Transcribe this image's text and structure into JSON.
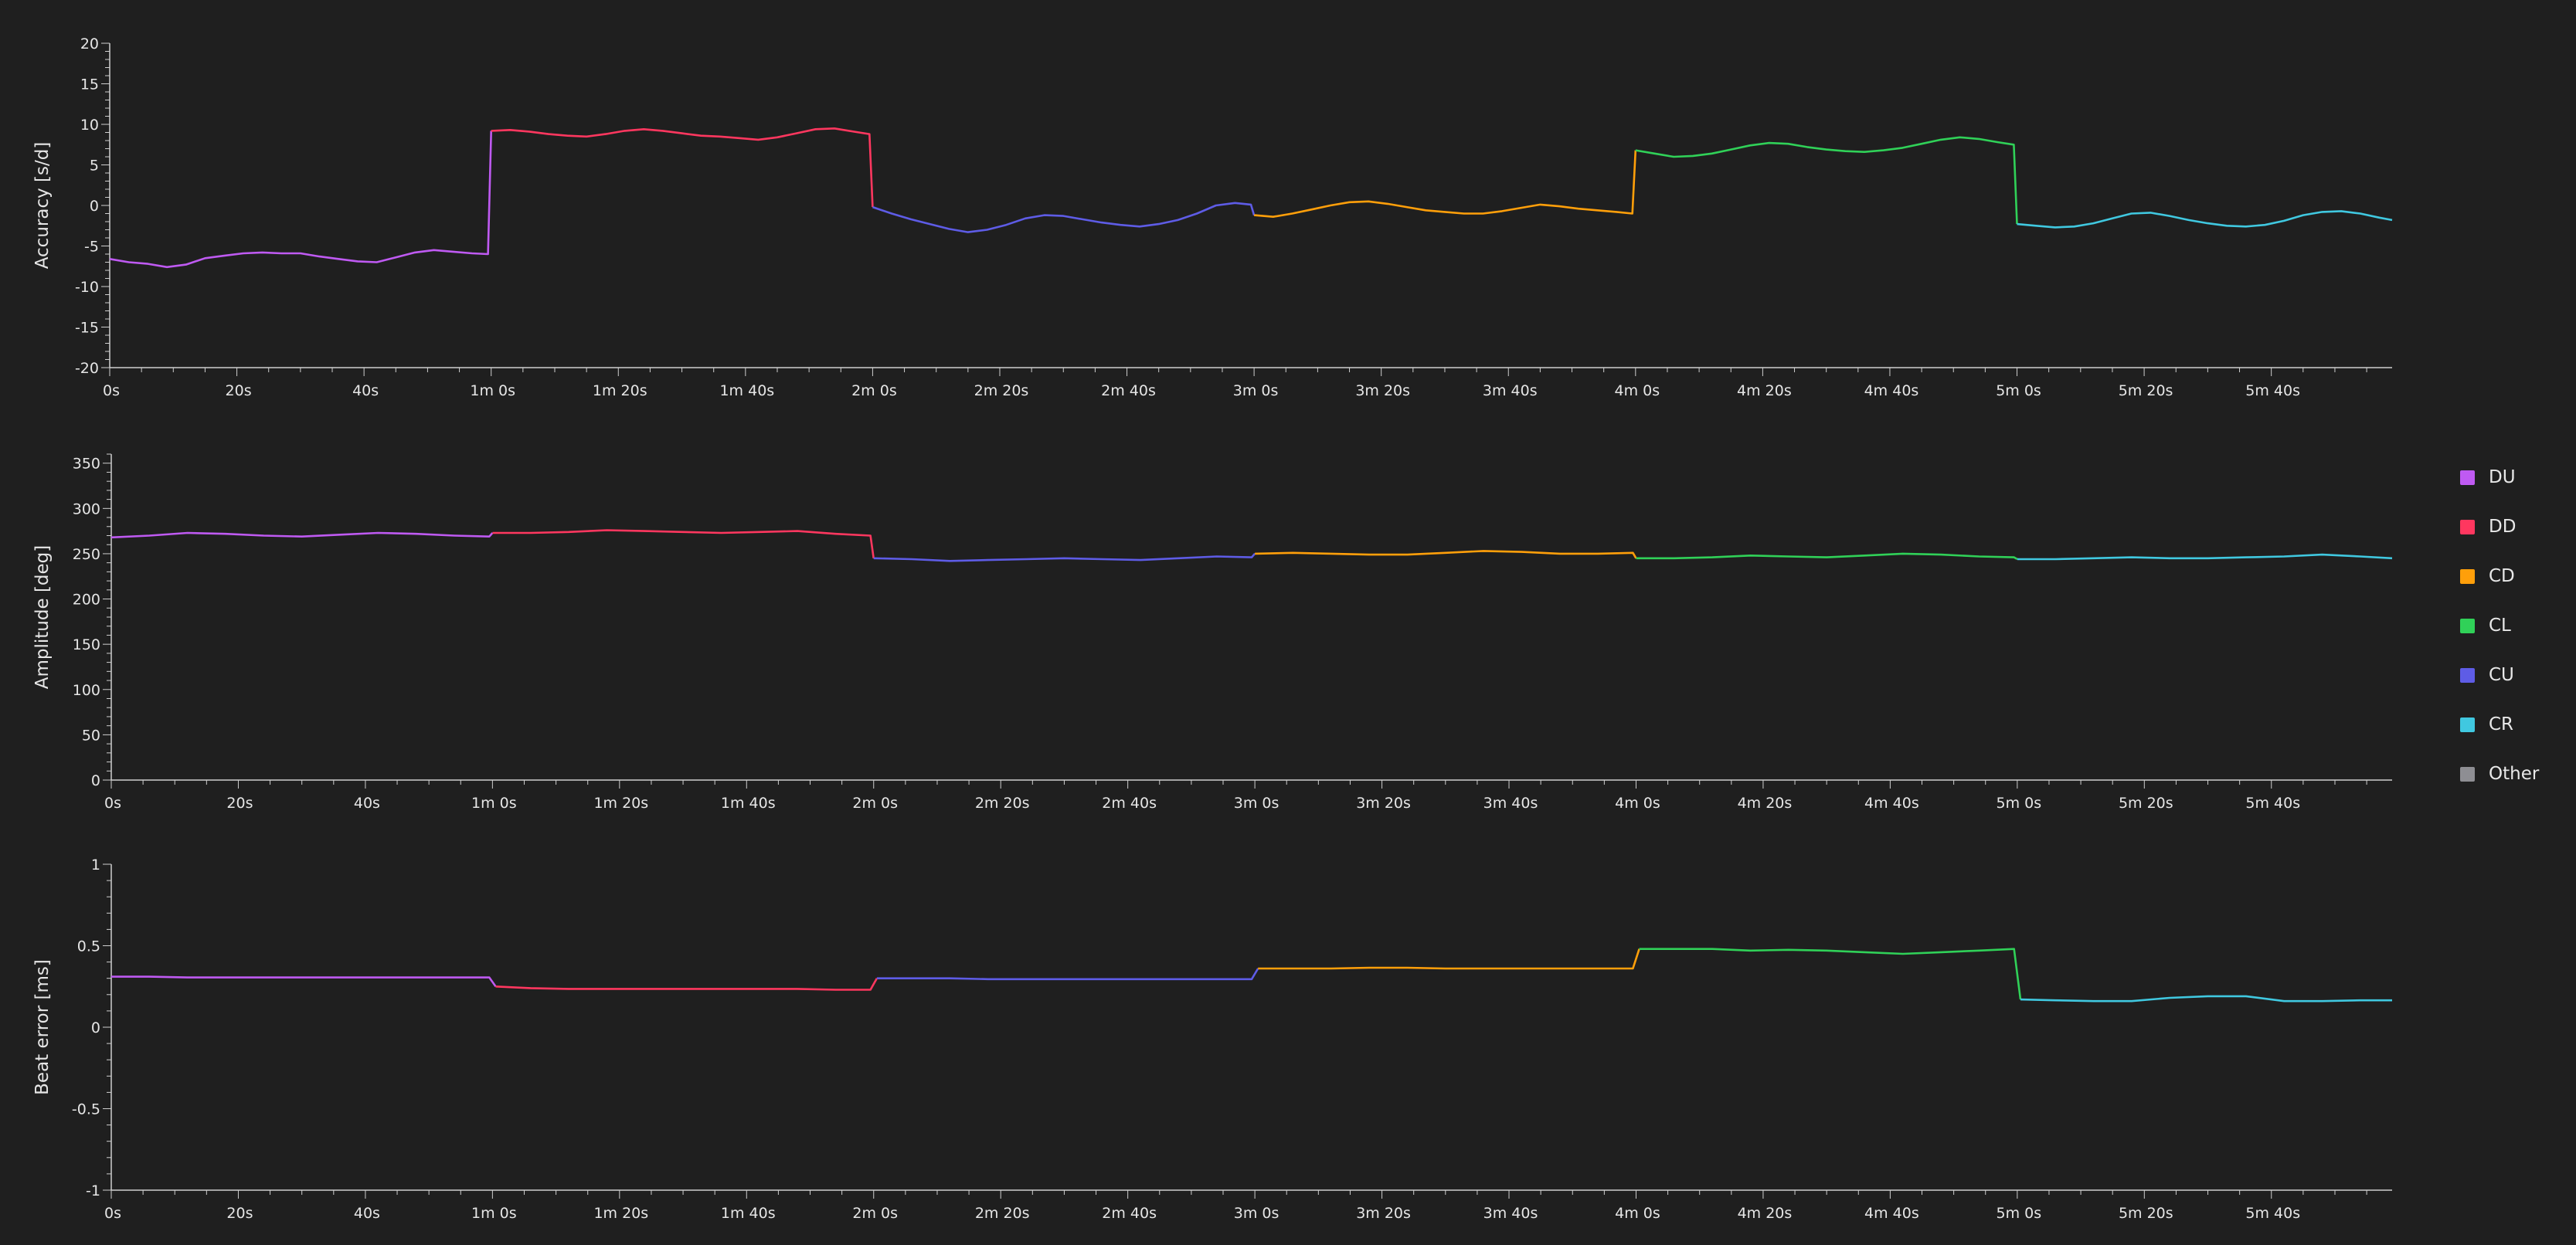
{
  "colors": {
    "background": "#1f1f1f",
    "axis": "#cfcfcf",
    "DU": "#bf5af2",
    "DD": "#ff375f",
    "CD": "#ff9f0a",
    "CL": "#30d158",
    "CU": "#5e5ce6",
    "CR": "#40c8e0",
    "Other": "#8e8e93"
  },
  "legend": [
    {
      "key": "DU",
      "label": "DU"
    },
    {
      "key": "DD",
      "label": "DD"
    },
    {
      "key": "CD",
      "label": "CD"
    },
    {
      "key": "CL",
      "label": "CL"
    },
    {
      "key": "CU",
      "label": "CU"
    },
    {
      "key": "CR",
      "label": "CR"
    },
    {
      "key": "Other",
      "label": "Other"
    }
  ],
  "chart_data": [
    {
      "type": "line",
      "ylabel": "Accuracy [s/d]",
      "xlim": [
        0,
        359
      ],
      "ylim": [
        -20,
        20
      ],
      "yticks": [
        20,
        15,
        10,
        5,
        0,
        -5,
        -10,
        -15,
        -20
      ],
      "xticks": [
        0,
        20,
        40,
        60,
        80,
        100,
        120,
        140,
        160,
        180,
        200,
        220,
        240,
        260,
        280,
        300,
        320,
        340
      ],
      "xtick_labels": [
        "0s",
        "20s",
        "40s",
        "1m 0s",
        "1m 20s",
        "1m 40s",
        "2m 0s",
        "2m 20s",
        "2m 40s",
        "3m 0s",
        "3m 20s",
        "3m 40s",
        "4m 0s",
        "4m 20s",
        "4m 40s",
        "5m 0s",
        "5m 20s",
        "5m 40s"
      ],
      "series": [
        {
          "key": "DU",
          "x": [
            0,
            3,
            6,
            9,
            12,
            15,
            18,
            21,
            24,
            27,
            30,
            33,
            36,
            39,
            42,
            45,
            48,
            51,
            54,
            57,
            59.5
          ],
          "y": [
            -6.6,
            -7.0,
            -7.2,
            -7.6,
            -7.3,
            -6.5,
            -6.2,
            -5.9,
            -5.8,
            -5.9,
            -5.9,
            -6.3,
            -6.6,
            -6.9,
            -7.0,
            -6.4,
            -5.8,
            -5.5,
            -5.7,
            -5.9,
            -6.0
          ]
        },
        {
          "key": "DD",
          "x": [
            60,
            63,
            66,
            69,
            72,
            75,
            78,
            81,
            84,
            87,
            90,
            93,
            96,
            99,
            102,
            105,
            108,
            111,
            114,
            117,
            119.5
          ],
          "y": [
            9.2,
            9.3,
            9.1,
            8.8,
            8.6,
            8.5,
            8.8,
            9.2,
            9.4,
            9.2,
            8.9,
            8.6,
            8.5,
            8.3,
            8.1,
            8.4,
            8.9,
            9.4,
            9.5,
            9.1,
            8.8
          ]
        },
        {
          "key": "CU",
          "x": [
            120,
            123,
            126,
            129,
            132,
            135,
            138,
            141,
            144,
            147,
            150,
            153,
            156,
            159,
            162,
            165,
            168,
            171,
            174,
            177,
            179.5
          ],
          "y": [
            -0.2,
            -1.0,
            -1.7,
            -2.3,
            -2.9,
            -3.3,
            -3.0,
            -2.4,
            -1.6,
            -1.2,
            -1.3,
            -1.7,
            -2.1,
            -2.4,
            -2.6,
            -2.3,
            -1.8,
            -1.0,
            0.0,
            0.3,
            0.1
          ]
        },
        {
          "key": "CD",
          "x": [
            180,
            183,
            186,
            189,
            192,
            195,
            198,
            201,
            204,
            207,
            210,
            213,
            216,
            219,
            222,
            225,
            228,
            231,
            234,
            237,
            239.5
          ],
          "y": [
            -1.2,
            -1.4,
            -1.0,
            -0.5,
            0.0,
            0.4,
            0.5,
            0.2,
            -0.2,
            -0.6,
            -0.8,
            -1.0,
            -1.0,
            -0.7,
            -0.3,
            0.1,
            -0.1,
            -0.4,
            -0.6,
            -0.8,
            -1.0
          ]
        },
        {
          "key": "CL",
          "x": [
            240,
            243,
            246,
            249,
            252,
            255,
            258,
            261,
            264,
            267,
            270,
            273,
            276,
            279,
            282,
            285,
            288,
            291,
            294,
            297,
            299.5
          ],
          "y": [
            6.8,
            6.4,
            6.0,
            6.1,
            6.4,
            6.9,
            7.4,
            7.7,
            7.6,
            7.2,
            6.9,
            6.7,
            6.6,
            6.8,
            7.1,
            7.6,
            8.1,
            8.4,
            8.2,
            7.8,
            7.5
          ]
        },
        {
          "key": "CR",
          "x": [
            300,
            303,
            306,
            309,
            312,
            315,
            318,
            321,
            324,
            327,
            330,
            333,
            336,
            339,
            342,
            345,
            348,
            351,
            354,
            357,
            359
          ],
          "y": [
            -2.3,
            -2.5,
            -2.7,
            -2.6,
            -2.2,
            -1.6,
            -1.0,
            -0.9,
            -1.3,
            -1.8,
            -2.2,
            -2.5,
            -2.6,
            -2.4,
            -1.9,
            -1.2,
            -0.8,
            -0.7,
            -1.0,
            -1.5,
            -1.8
          ]
        }
      ]
    },
    {
      "type": "line",
      "ylabel": "Amplitude [deg]",
      "xlim": [
        0,
        359
      ],
      "ylim": [
        0,
        360
      ],
      "yticks": [
        350,
        300,
        250,
        200,
        150,
        100,
        50,
        0
      ],
      "xticks": [
        0,
        20,
        40,
        60,
        80,
        100,
        120,
        140,
        160,
        180,
        200,
        220,
        240,
        260,
        280,
        300,
        320,
        340
      ],
      "xtick_labels": [
        "0s",
        "20s",
        "40s",
        "1m 0s",
        "1m 20s",
        "1m 40s",
        "2m 0s",
        "2m 20s",
        "2m 40s",
        "3m 0s",
        "3m 20s",
        "3m 40s",
        "4m 0s",
        "4m 20s",
        "4m 40s",
        "5m 0s",
        "5m 20s",
        "5m 40s"
      ],
      "series": [
        {
          "key": "DU",
          "x": [
            0,
            6,
            12,
            18,
            24,
            30,
            36,
            42,
            48,
            54,
            59.5
          ],
          "y": [
            268,
            270,
            273,
            272,
            270,
            269,
            271,
            273,
            272,
            270,
            269
          ]
        },
        {
          "key": "DD",
          "x": [
            60,
            66,
            72,
            78,
            84,
            90,
            96,
            102,
            108,
            114,
            119.5
          ],
          "y": [
            273,
            273,
            274,
            276,
            275,
            274,
            273,
            274,
            275,
            272,
            270
          ]
        },
        {
          "key": "CU",
          "x": [
            120,
            126,
            132,
            138,
            144,
            150,
            156,
            162,
            168,
            174,
            179.5
          ],
          "y": [
            245,
            244,
            242,
            243,
            244,
            245,
            244,
            243,
            245,
            247,
            246
          ]
        },
        {
          "key": "CD",
          "x": [
            180,
            186,
            192,
            198,
            204,
            210,
            216,
            222,
            228,
            234,
            239.5
          ],
          "y": [
            250,
            251,
            250,
            249,
            249,
            251,
            253,
            252,
            250,
            250,
            251
          ]
        },
        {
          "key": "CL",
          "x": [
            240,
            246,
            252,
            258,
            264,
            270,
            276,
            282,
            288,
            294,
            299.5
          ],
          "y": [
            245,
            245,
            246,
            248,
            247,
            246,
            248,
            250,
            249,
            247,
            246
          ]
        },
        {
          "key": "CR",
          "x": [
            300,
            306,
            312,
            318,
            324,
            330,
            336,
            342,
            348,
            354,
            359
          ],
          "y": [
            244,
            244,
            245,
            246,
            245,
            245,
            246,
            247,
            249,
            247,
            245
          ]
        }
      ]
    },
    {
      "type": "line",
      "ylabel": "Beat error [ms]",
      "xlim": [
        0,
        359
      ],
      "ylim": [
        -1,
        1
      ],
      "yticks": [
        1,
        0.5,
        0,
        -0.5,
        -1
      ],
      "ytick_labels": [
        "1",
        "0.5",
        "0",
        "-0.5",
        "-1"
      ],
      "xticks": [
        0,
        20,
        40,
        60,
        80,
        100,
        120,
        140,
        160,
        180,
        200,
        220,
        240,
        260,
        280,
        300,
        320,
        340
      ],
      "xtick_labels": [
        "0s",
        "20s",
        "40s",
        "1m 0s",
        "1m 20s",
        "1m 40s",
        "2m 0s",
        "2m 20s",
        "2m 40s",
        "3m 0s",
        "3m 20s",
        "3m 40s",
        "4m 0s",
        "4m 20s",
        "4m 40s",
        "5m 0s",
        "5m 20s",
        "5m 40s"
      ],
      "series": [
        {
          "key": "DU",
          "x": [
            0,
            6,
            12,
            18,
            24,
            30,
            36,
            42,
            48,
            54,
            59.5
          ],
          "y": [
            0.31,
            0.31,
            0.305,
            0.305,
            0.305,
            0.305,
            0.305,
            0.305,
            0.305,
            0.305,
            0.305
          ]
        },
        {
          "key": "DD",
          "x": [
            60.5,
            66,
            72,
            78,
            84,
            90,
            96,
            102,
            108,
            114,
            119.5
          ],
          "y": [
            0.25,
            0.24,
            0.235,
            0.235,
            0.235,
            0.235,
            0.235,
            0.235,
            0.235,
            0.23,
            0.23
          ]
        },
        {
          "key": "CU",
          "x": [
            120.5,
            126,
            132,
            138,
            144,
            150,
            156,
            162,
            168,
            174,
            179.5
          ],
          "y": [
            0.3,
            0.3,
            0.3,
            0.295,
            0.295,
            0.295,
            0.295,
            0.295,
            0.295,
            0.295,
            0.295
          ]
        },
        {
          "key": "CD",
          "x": [
            180.5,
            186,
            192,
            198,
            204,
            210,
            216,
            222,
            228,
            234,
            239.5
          ],
          "y": [
            0.36,
            0.36,
            0.36,
            0.365,
            0.365,
            0.36,
            0.36,
            0.36,
            0.36,
            0.36,
            0.36
          ]
        },
        {
          "key": "CL",
          "x": [
            240.5,
            246,
            252,
            258,
            264,
            270,
            276,
            282,
            288,
            294,
            299.5
          ],
          "y": [
            0.48,
            0.48,
            0.48,
            0.47,
            0.475,
            0.47,
            0.46,
            0.45,
            0.46,
            0.47,
            0.48
          ]
        },
        {
          "key": "CR",
          "x": [
            300.5,
            306,
            312,
            318,
            324,
            330,
            336,
            342,
            348,
            354,
            359
          ],
          "y": [
            0.17,
            0.165,
            0.16,
            0.16,
            0.18,
            0.19,
            0.19,
            0.16,
            0.16,
            0.165,
            0.165
          ]
        }
      ]
    }
  ]
}
